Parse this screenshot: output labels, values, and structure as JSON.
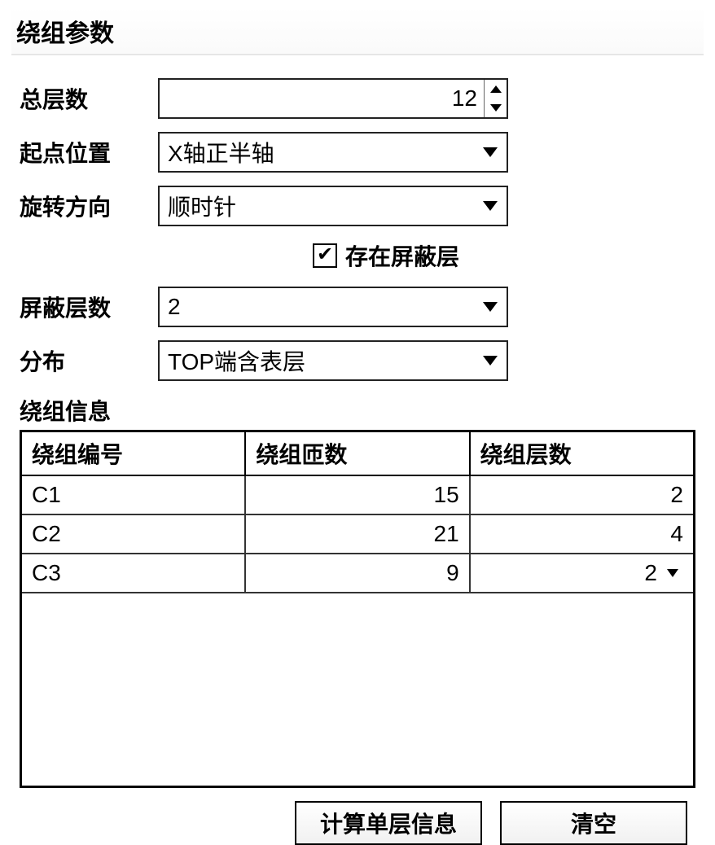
{
  "section_title": "绕组参数",
  "fields": {
    "total_layers": {
      "label": "总层数",
      "value": "12"
    },
    "start_pos": {
      "label": "起点位置",
      "value": "X轴正半轴"
    },
    "rotation": {
      "label": "旋转方向",
      "value": "顺时针"
    },
    "has_shield": {
      "label": "存在屏蔽层",
      "checked": true
    },
    "shield_layers": {
      "label": "屏蔽层数",
      "value": "2"
    },
    "distribution": {
      "label": "分布",
      "value": "TOP端含表层"
    }
  },
  "table": {
    "title": "绕组信息",
    "columns": [
      "绕组编号",
      "绕组匝数",
      "绕组层数"
    ],
    "rows": [
      {
        "id": "C1",
        "turns": "15",
        "layers": "2",
        "has_dropdown": false
      },
      {
        "id": "C2",
        "turns": "21",
        "layers": "4",
        "has_dropdown": false
      },
      {
        "id": "C3",
        "turns": "9",
        "layers": "2",
        "has_dropdown": true
      }
    ]
  },
  "buttons": {
    "compute": "计算单层信息",
    "clear": "清空"
  },
  "colors": {
    "border": "#000000",
    "bg": "#ffffff",
    "divider": "#e6e6e6"
  }
}
